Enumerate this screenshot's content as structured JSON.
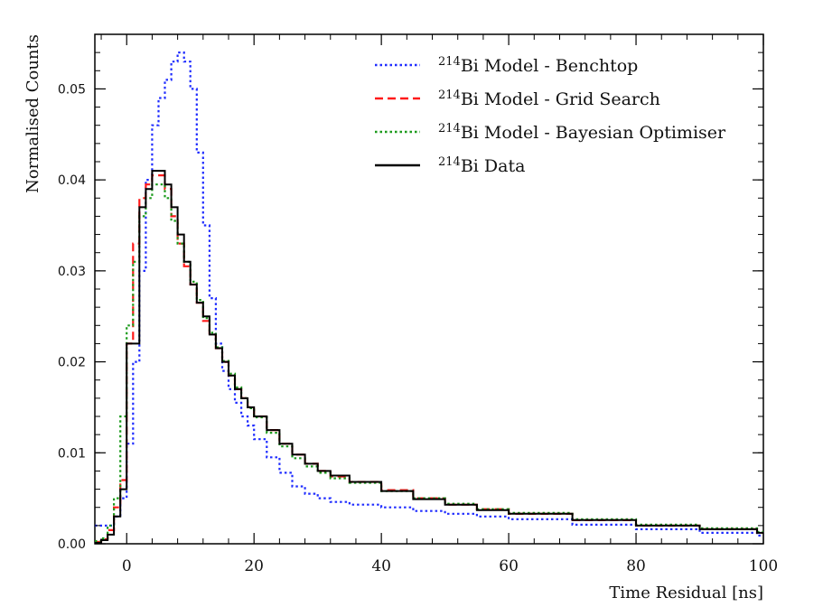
{
  "chart_data": {
    "type": "line",
    "title": "",
    "xlabel": "Time Residual [ns]",
    "ylabel": "Normalised Counts",
    "xlim": [
      -5,
      100
    ],
    "ylim": [
      0,
      0.056
    ],
    "x_ticks": [
      0,
      20,
      40,
      60,
      80,
      100
    ],
    "x_tick_labels": [
      "0",
      "20",
      "40",
      "60",
      "80",
      "100"
    ],
    "y_ticks": [
      0,
      0.01,
      0.02,
      0.03,
      0.04,
      0.05
    ],
    "y_tick_labels": [
      "0.00",
      "0.01",
      "0.02",
      "0.03",
      "0.04",
      "0.05"
    ],
    "grid": false,
    "legend_position": "top-right",
    "bin_width": 1,
    "series": [
      {
        "name": "Bi Model - Benchtop",
        "name_sup": "214",
        "color": "#1f2cff",
        "style": "dotted",
        "x": [
          -5,
          -4,
          -3,
          -2,
          -1,
          0,
          1,
          2,
          3,
          4,
          5,
          6,
          7,
          8,
          9,
          10,
          11,
          12,
          13,
          14,
          15,
          16,
          17,
          18,
          19,
          20,
          22,
          24,
          26,
          28,
          30,
          32,
          35,
          40,
          45,
          50,
          55,
          60,
          70,
          80,
          90,
          99
        ],
        "values": [
          0.002,
          0.002,
          0.002,
          0.003,
          0.005,
          0.011,
          0.02,
          0.03,
          0.04,
          0.046,
          0.049,
          0.051,
          0.053,
          0.054,
          0.053,
          0.05,
          0.043,
          0.035,
          0.027,
          0.022,
          0.019,
          0.017,
          0.0155,
          0.014,
          0.013,
          0.0115,
          0.0095,
          0.0078,
          0.0063,
          0.0055,
          0.005,
          0.0046,
          0.0043,
          0.004,
          0.0036,
          0.0033,
          0.003,
          0.0027,
          0.0021,
          0.0016,
          0.0012,
          0.0009
        ]
      },
      {
        "name": "Bi Model - Grid Search",
        "name_sup": "214",
        "color": "#ff1a1a",
        "style": "dashed",
        "x": [
          -5,
          -4,
          -3,
          -2,
          -1,
          0,
          1,
          2,
          3,
          4,
          5,
          6,
          7,
          8,
          9,
          10,
          11,
          12,
          13,
          14,
          15,
          16,
          17,
          18,
          19,
          20,
          22,
          24,
          26,
          28,
          30,
          32,
          35,
          40,
          45,
          50,
          55,
          60,
          70,
          80,
          90,
          99
        ],
        "values": [
          0.0002,
          0.0005,
          0.0015,
          0.004,
          0.007,
          0.022,
          0.033,
          0.038,
          0.0395,
          0.0405,
          0.0405,
          0.039,
          0.036,
          0.033,
          0.0305,
          0.0285,
          0.0265,
          0.0245,
          0.023,
          0.0215,
          0.02,
          0.0185,
          0.017,
          0.016,
          0.015,
          0.014,
          0.0125,
          0.011,
          0.0098,
          0.0088,
          0.008,
          0.0074,
          0.0068,
          0.0059,
          0.005,
          0.0043,
          0.0038,
          0.0033,
          0.0026,
          0.002,
          0.0016,
          0.0012
        ]
      },
      {
        "name": "Bi Model - Bayesian Optimiser",
        "name_sup": "214",
        "color": "#1a9a1a",
        "style": "dotted",
        "x": [
          -5,
          -4,
          -3,
          -2,
          -1,
          0,
          1,
          2,
          3,
          4,
          5,
          6,
          7,
          8,
          9,
          10,
          11,
          12,
          13,
          14,
          15,
          16,
          17,
          18,
          19,
          20,
          22,
          24,
          26,
          28,
          30,
          32,
          35,
          40,
          45,
          50,
          55,
          60,
          70,
          80,
          90,
          99
        ],
        "values": [
          0.0003,
          0.0006,
          0.002,
          0.005,
          0.014,
          0.024,
          0.031,
          0.036,
          0.038,
          0.0395,
          0.0395,
          0.038,
          0.0355,
          0.033,
          0.031,
          0.0288,
          0.0268,
          0.0248,
          0.0232,
          0.0216,
          0.0201,
          0.0187,
          0.0172,
          0.016,
          0.0149,
          0.0139,
          0.0122,
          0.0107,
          0.0094,
          0.0085,
          0.0078,
          0.0072,
          0.0067,
          0.0058,
          0.005,
          0.0044,
          0.0038,
          0.0034,
          0.0027,
          0.0021,
          0.0017,
          0.0013
        ]
      },
      {
        "name": "Bi Data",
        "name_sup": "214",
        "color": "#000000",
        "style": "solid",
        "x": [
          -5,
          -4,
          -3,
          -2,
          -1,
          0,
          1,
          2,
          3,
          4,
          5,
          6,
          7,
          8,
          9,
          10,
          11,
          12,
          13,
          14,
          15,
          16,
          17,
          18,
          19,
          20,
          22,
          24,
          26,
          28,
          30,
          32,
          35,
          40,
          45,
          50,
          55,
          60,
          70,
          80,
          90,
          99
        ],
        "values": [
          0.0001,
          0.0004,
          0.001,
          0.003,
          0.006,
          0.022,
          0.022,
          0.037,
          0.039,
          0.041,
          0.041,
          0.0395,
          0.037,
          0.034,
          0.031,
          0.0285,
          0.0265,
          0.025,
          0.023,
          0.0215,
          0.02,
          0.0185,
          0.017,
          0.016,
          0.015,
          0.014,
          0.0125,
          0.011,
          0.0098,
          0.0088,
          0.008,
          0.0075,
          0.0068,
          0.0058,
          0.0049,
          0.0043,
          0.0037,
          0.0033,
          0.0026,
          0.002,
          0.0016,
          0.0012
        ]
      }
    ]
  }
}
